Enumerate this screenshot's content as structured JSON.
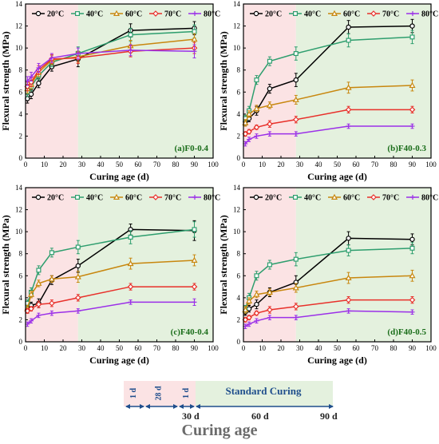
{
  "colors": {
    "20": "#000000",
    "40": "#2e9e6e",
    "60": "#c8870f",
    "70": "#e8302a",
    "80": "#9b30e8",
    "pink": "#fbe3e4",
    "green": "#e4f1de",
    "timelineText": "#1f4e8c"
  },
  "chart_data": [
    {
      "type": "line",
      "label": "(a)F0-0.4",
      "xlabel": "Curing age (d)",
      "ylabel": "Flexural strength (MPa)",
      "xlim": [
        0,
        100
      ],
      "ylim": [
        0,
        14
      ],
      "xticks": [
        0,
        10,
        20,
        30,
        40,
        50,
        60,
        70,
        80,
        90,
        100
      ],
      "yticks": [
        0,
        2,
        4,
        6,
        8,
        10,
        12,
        14
      ],
      "legend": "top",
      "x": [
        1,
        3,
        7,
        14,
        28,
        56,
        90
      ],
      "series": [
        {
          "name": "20°C",
          "values": [
            5.4,
            5.8,
            6.8,
            8.3,
            9.0,
            11.6,
            11.8
          ],
          "err": [
            0.4,
            0.4,
            0.4,
            0.4,
            0.7,
            0.6,
            0.6
          ]
        },
        {
          "name": "40°C",
          "values": [
            6.0,
            6.5,
            7.5,
            8.7,
            9.5,
            11.2,
            11.5
          ],
          "err": [
            0.4,
            0.4,
            0.4,
            0.4,
            0.6,
            0.6,
            0.6
          ]
        },
        {
          "name": "60°C",
          "values": [
            6.3,
            6.7,
            7.8,
            8.9,
            9.2,
            10.2,
            10.8
          ],
          "err": [
            0.4,
            0.4,
            0.4,
            0.4,
            0.5,
            0.5,
            0.5
          ]
        },
        {
          "name": "70°C",
          "values": [
            6.5,
            6.9,
            8.0,
            9.0,
            9.1,
            9.7,
            10.0
          ],
          "err": [
            0.4,
            0.4,
            0.4,
            0.4,
            0.5,
            0.5,
            0.5
          ]
        },
        {
          "name": "80°C",
          "values": [
            7.0,
            7.4,
            8.2,
            9.1,
            9.5,
            9.8,
            9.7
          ],
          "err": [
            0.4,
            0.4,
            0.4,
            0.4,
            0.5,
            0.5,
            0.6
          ]
        }
      ]
    },
    {
      "type": "line",
      "label": "(b)F40-0.3",
      "xlabel": "Curing age (d)",
      "ylabel": "Flexural strength (MPa)",
      "xlim": [
        0,
        100
      ],
      "ylim": [
        0,
        14
      ],
      "xticks": [
        0,
        10,
        20,
        30,
        40,
        50,
        60,
        70,
        80,
        90,
        100
      ],
      "yticks": [
        0,
        2,
        4,
        6,
        8,
        10,
        12,
        14
      ],
      "legend": "top",
      "x": [
        1,
        3,
        7,
        14,
        28,
        56,
        90
      ],
      "series": [
        {
          "name": "20°C",
          "values": [
            3.3,
            3.6,
            4.3,
            6.3,
            7.1,
            11.9,
            12.0
          ],
          "err": [
            0.3,
            0.3,
            0.4,
            0.4,
            0.6,
            0.6,
            0.6
          ]
        },
        {
          "name": "40°C",
          "values": [
            3.6,
            4.3,
            7.1,
            8.8,
            9.5,
            10.7,
            11.0
          ],
          "err": [
            0.3,
            0.4,
            0.4,
            0.4,
            0.6,
            0.6,
            0.6
          ]
        },
        {
          "name": "60°C",
          "values": [
            3.2,
            4.0,
            4.5,
            4.8,
            5.3,
            6.4,
            6.6
          ],
          "err": [
            0.3,
            0.3,
            0.3,
            0.3,
            0.4,
            0.5,
            0.5
          ]
        },
        {
          "name": "70°C",
          "values": [
            2.2,
            2.4,
            2.8,
            3.1,
            3.5,
            4.4,
            4.4
          ],
          "err": [
            0.2,
            0.2,
            0.2,
            0.3,
            0.3,
            0.3,
            0.3
          ]
        },
        {
          "name": "80°C",
          "values": [
            1.3,
            1.7,
            2.0,
            2.2,
            2.2,
            2.9,
            2.9
          ],
          "err": [
            0.2,
            0.2,
            0.2,
            0.2,
            0.2,
            0.2,
            0.2
          ]
        }
      ]
    },
    {
      "type": "line",
      "label": "(c)F40-0.4",
      "xlabel": "Curing age (d)",
      "ylabel": "Flexural strength (MPa)",
      "xlim": [
        0,
        100
      ],
      "ylim": [
        0,
        14
      ],
      "xticks": [
        0,
        10,
        20,
        30,
        40,
        50,
        60,
        70,
        80,
        90,
        100
      ],
      "yticks": [
        0,
        2,
        4,
        6,
        8,
        10,
        12,
        14
      ],
      "legend": "top",
      "x": [
        1,
        3,
        7,
        14,
        28,
        56,
        90
      ],
      "series": [
        {
          "name": "20°C",
          "values": [
            2.9,
            3.3,
            3.5,
            5.6,
            6.9,
            10.2,
            10.1
          ],
          "err": [
            0.3,
            0.3,
            0.4,
            0.4,
            0.6,
            0.5,
            0.9
          ]
        },
        {
          "name": "40°C",
          "values": [
            3.5,
            4.5,
            6.5,
            8.1,
            8.6,
            9.5,
            10.2
          ],
          "err": [
            0.3,
            0.4,
            0.4,
            0.4,
            0.6,
            0.6,
            0.7
          ]
        },
        {
          "name": "60°C",
          "values": [
            3.0,
            4.3,
            5.3,
            5.7,
            5.9,
            7.1,
            7.4
          ],
          "err": [
            0.3,
            0.3,
            0.3,
            0.3,
            0.5,
            0.5,
            0.5
          ]
        },
        {
          "name": "70°C",
          "values": [
            2.8,
            3.0,
            3.4,
            3.5,
            4.0,
            5.0,
            5.0
          ],
          "err": [
            0.2,
            0.2,
            0.3,
            0.3,
            0.3,
            0.3,
            0.3
          ]
        },
        {
          "name": "80°C",
          "values": [
            1.6,
            1.9,
            2.4,
            2.6,
            2.8,
            3.6,
            3.6
          ],
          "err": [
            0.2,
            0.2,
            0.2,
            0.2,
            0.2,
            0.2,
            0.3
          ]
        }
      ]
    },
    {
      "type": "line",
      "label": "(d)F40-0.5",
      "xlabel": "Curing age (d)",
      "ylabel": "Flexural strength (MPa)",
      "xlim": [
        0,
        100
      ],
      "ylim": [
        0,
        14
      ],
      "xticks": [
        0,
        10,
        20,
        30,
        40,
        50,
        60,
        70,
        80,
        90,
        100
      ],
      "yticks": [
        0,
        2,
        4,
        6,
        8,
        10,
        12,
        14
      ],
      "legend": "top",
      "x": [
        1,
        3,
        7,
        14,
        28,
        56,
        90
      ],
      "series": [
        {
          "name": "20°C",
          "values": [
            2.7,
            3.0,
            3.4,
            4.5,
            5.4,
            9.4,
            9.3
          ],
          "err": [
            0.3,
            0.3,
            0.4,
            0.4,
            0.6,
            0.6,
            0.5
          ]
        },
        {
          "name": "40°C",
          "values": [
            3.0,
            4.0,
            6.0,
            7.0,
            7.5,
            8.3,
            8.5
          ],
          "err": [
            0.3,
            0.4,
            0.4,
            0.4,
            0.6,
            0.5,
            0.5
          ]
        },
        {
          "name": "60°C",
          "values": [
            2.9,
            3.7,
            4.3,
            4.5,
            4.9,
            5.8,
            6.0
          ],
          "err": [
            0.3,
            0.3,
            0.3,
            0.3,
            0.4,
            0.5,
            0.5
          ]
        },
        {
          "name": "70°C",
          "values": [
            2.0,
            2.2,
            2.6,
            2.9,
            3.2,
            3.8,
            3.8
          ],
          "err": [
            0.2,
            0.2,
            0.2,
            0.3,
            0.3,
            0.3,
            0.3
          ]
        },
        {
          "name": "80°C",
          "values": [
            1.4,
            1.6,
            1.9,
            2.2,
            2.2,
            2.8,
            2.7
          ],
          "err": [
            0.2,
            0.2,
            0.2,
            0.2,
            0.2,
            0.2,
            0.2
          ]
        }
      ]
    }
  ],
  "timeline": {
    "title": "Curing age",
    "seg1": "1 d",
    "seg2": "28 d",
    "seg3": "1 d",
    "standard": "Standard Curing",
    "t30": "30 d",
    "t60": "60 d",
    "t90": "90 d"
  }
}
